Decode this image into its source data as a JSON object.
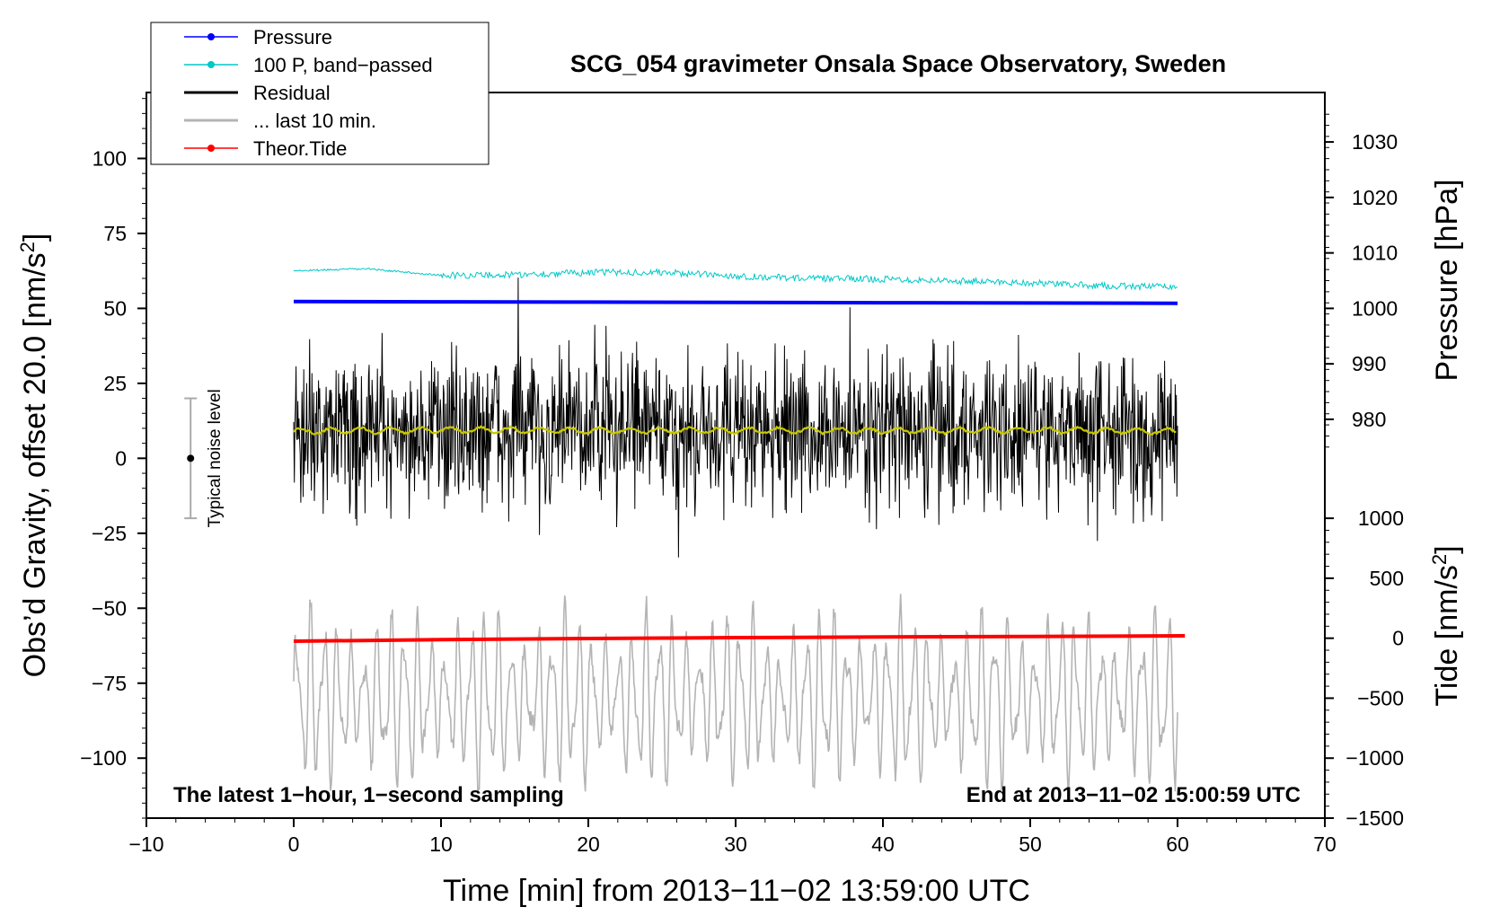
{
  "chart_data": {
    "type": "line",
    "title": "SCG_054 gravimeter Onsala Space Observatory, Sweden",
    "xlabel": "Time [min] from 2013−11−02 13:59:00 UTC",
    "ylabel_left": "Obs’d Gravity, offset 20.0 [nm/s",
    "ylabel_left_sup": "2",
    "ylabel_left_tail": "]",
    "ylabel_pressure": "Pressure [hPa]",
    "ylabel_tide": "Tide [nm/s",
    "ylabel_tide_sup": "2",
    "ylabel_tide_tail": "]",
    "xlim": [
      -10,
      70
    ],
    "ylim": [
      -120,
      122
    ],
    "x_ticks": [
      -10,
      0,
      10,
      20,
      30,
      40,
      50,
      60,
      70
    ],
    "x_tick_labels": [
      "−10",
      "0",
      "10",
      "20",
      "30",
      "40",
      "50",
      "60",
      "70"
    ],
    "y_ticks": [
      100,
      75,
      50,
      25,
      0,
      -25,
      -50,
      -75,
      -100
    ],
    "y_tick_labels": [
      "100",
      "75",
      "50",
      "25",
      "0",
      "−25",
      "−50",
      "−75",
      "−100"
    ],
    "pressure_axis": {
      "ticks": [
        1030,
        1020,
        1010,
        1000,
        990,
        980
      ],
      "labels": [
        "1030",
        "1020",
        "1010",
        "1000",
        "990",
        "980"
      ],
      "ref_value": 1000,
      "ref_gravity": 50,
      "gravity_per_hPa": 1.85
    },
    "tide_axis": {
      "ticks": [
        1000,
        500,
        0,
        -500,
        -1000,
        -1500
      ],
      "labels": [
        "1000",
        "500",
        "0",
        "−500",
        "−1000",
        "−1500"
      ],
      "ref_value": 0,
      "ref_gravity": -60,
      "gravity_per_unit": 0.04
    },
    "annotations": {
      "bottom_left": "The latest 1−hour, 1−second sampling",
      "bottom_right": "End at 2013−11−02 15:00:59 UTC"
    },
    "noise_indicator": {
      "label": "Typical noise level",
      "x": -7,
      "center": 0,
      "low": -20,
      "high": 20
    },
    "legend": [
      {
        "label": "Pressure",
        "color": "#0000ff",
        "marker": true
      },
      {
        "label": "100 P, band−passed",
        "color": "#00c8c8",
        "marker": true
      },
      {
        "label": "Residual",
        "color": "#000000",
        "marker": false
      },
      {
        "label": "... last 10 min.",
        "color": "#b4b4b4",
        "marker": false
      },
      {
        "label": "Theor.Tide",
        "color": "#ff0000",
        "marker": true
      }
    ],
    "series": [
      {
        "name": "Pressure",
        "color": "#0000ff",
        "x": [
          0,
          10,
          20,
          30,
          40,
          50,
          60
        ],
        "values": [
          52.3,
          52.2,
          52.1,
          52.0,
          51.9,
          51.8,
          51.7
        ]
      },
      {
        "name": "100 P, band−passed",
        "color": "#00c8c8",
        "x": [
          0,
          5,
          10,
          15,
          20,
          25,
          30,
          35,
          40,
          45,
          50,
          55,
          60
        ],
        "values": [
          62.5,
          63.2,
          61.0,
          61.2,
          62.0,
          62.0,
          60.8,
          60.0,
          59.8,
          59.2,
          58.5,
          57.5,
          57.2
        ]
      },
      {
        "name": "Residual",
        "color": "#000000",
        "x": [
          0,
          60
        ],
        "values": [
          9,
          9
        ],
        "noise_amplitude": 16
      },
      {
        "name": "Residual (smoothed)",
        "color": "#c8c800",
        "x": [
          0,
          10,
          20,
          30,
          40,
          50,
          60
        ],
        "values": [
          9.0,
          9.5,
          9.2,
          9.3,
          9.2,
          9.4,
          9.0
        ]
      },
      {
        "name": "... last 10 min.",
        "color": "#b4b4b4",
        "x": [
          0,
          60
        ],
        "values": [
          -80,
          -80
        ],
        "oscillation_amplitude": 30
      },
      {
        "name": "Theor.Tide",
        "color": "#ff0000",
        "x": [
          0,
          10,
          20,
          30,
          40,
          50,
          60.5
        ],
        "values": [
          -61.0,
          -60.5,
          -60.1,
          -59.8,
          -59.6,
          -59.4,
          -59.2
        ]
      }
    ]
  }
}
